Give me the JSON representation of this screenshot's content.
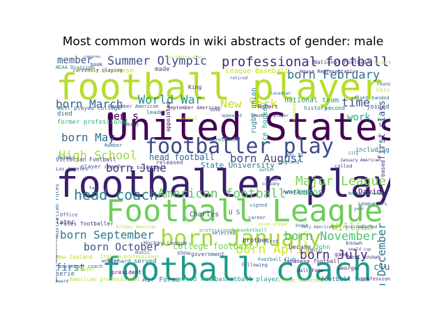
{
  "title": "Most common words in wiki abstracts of gender: male",
  "words": [
    {
      "text": "football player",
      "color": "#b5de2b"
    },
    {
      "text": "United States",
      "color": "#440154"
    },
    {
      "text": "footballer played",
      "color": "#3b1f6a"
    },
    {
      "text": "Football League",
      "color": "#6ccd5a"
    },
    {
      "text": "football coach",
      "color": "#1f9a8a"
    },
    {
      "text": "footballer play",
      "color": "#3e4a89"
    },
    {
      "text": "born January",
      "color": "#a2da37"
    },
    {
      "text": "professional footballer",
      "color": "#482878"
    },
    {
      "text": "Summer Olympic",
      "color": "#3e4c8a"
    },
    {
      "text": "born February",
      "color": "#2c728e"
    },
    {
      "text": "born March",
      "color": "#35608d"
    },
    {
      "text": "World War",
      "color": "#20938c"
    },
    {
      "text": "New York",
      "color": "#c8e020"
    },
    {
      "text": "head coach",
      "color": "#26828e"
    },
    {
      "text": "American football",
      "color": "#5ec962"
    },
    {
      "text": "born September",
      "color": "#2a788e"
    },
    {
      "text": "born October",
      "color": "#3b528b"
    },
    {
      "text": "born April",
      "color": "#d0e11c"
    },
    {
      "text": "born November",
      "color": "#4ac16d"
    },
    {
      "text": "born July",
      "color": "#482677"
    },
    {
      "text": "born December",
      "color": "#2a788e"
    },
    {
      "text": "Major League",
      "color": "#7ad151"
    },
    {
      "text": "born June",
      "color": "#46327e"
    },
    {
      "text": "born May",
      "color": "#31688e"
    },
    {
      "text": "High School",
      "color": "#9fda3a"
    },
    {
      "text": "born August",
      "color": "#3f4788"
    },
    {
      "text": "head football",
      "color": "#33638d"
    },
    {
      "text": "college football",
      "color": "#70cf57"
    },
    {
      "text": "member",
      "color": "#3a538b"
    },
    {
      "text": "men s",
      "color": "#440154"
    },
    {
      "text": "time",
      "color": "#3e4c8a"
    },
    {
      "text": "work",
      "color": "#22a884"
    },
    {
      "text": "season",
      "color": "#4ac16d"
    },
    {
      "text": "William",
      "color": "#9fda3a"
    },
    {
      "text": "first",
      "color": "#2c728e"
    },
    {
      "text": "club",
      "color": "#287c8e"
    },
    {
      "text": "Air Force",
      "color": "#2c728e"
    },
    {
      "text": "served head",
      "color": "#35b779"
    },
    {
      "text": "basketball player",
      "color": "#1f988b"
    },
    {
      "text": "football team",
      "color": "#2c728e"
    },
    {
      "text": "State University",
      "color": "#2a788e"
    },
    {
      "text": "Hockey League",
      "color": "#3b528b"
    },
    {
      "text": "national team",
      "color": "#1e9b8a"
    },
    {
      "text": "first class",
      "color": "#3b528b"
    },
    {
      "text": "rugby union",
      "color": "#2a788e"
    },
    {
      "text": "ice hockey",
      "color": "#20a386"
    },
    {
      "text": "League Baseball",
      "color": "#cae11f"
    },
    {
      "text": "former Japanese",
      "color": "#b8de29"
    },
    {
      "text": "played college",
      "color": "#2c728e"
    },
    {
      "text": "former professional",
      "color": "#2ab07f"
    },
    {
      "text": "Victorian Football",
      "color": "#3e4a89"
    },
    {
      "text": "player coach",
      "color": "#3b528b"
    },
    {
      "text": "rules footballer",
      "color": "#46337e"
    },
    {
      "text": "Australian rules",
      "color": "#33638d"
    },
    {
      "text": "professional basketball",
      "color": "#35b779"
    },
    {
      "text": "New Zealand",
      "color": "#b5de2b"
    },
    {
      "text": "best known",
      "color": "#433e85"
    },
    {
      "text": "American professional",
      "color": "#b5de2b"
    },
    {
      "text": "Japanese football",
      "color": "#472d7b"
    },
    {
      "text": "House Representative",
      "color": "#482878"
    },
    {
      "text": "National Football",
      "color": "#3e4a89"
    },
    {
      "text": "December American",
      "color": "#355f8d"
    },
    {
      "text": "September American",
      "color": "#481f70"
    },
    {
      "text": "worked",
      "color": "#2f6c8e"
    },
    {
      "text": "David",
      "color": "#440154"
    },
    {
      "text": "became",
      "color": "#433e85"
    },
    {
      "text": "John",
      "color": "#31b57b"
    },
    {
      "text": "brother",
      "color": "#482878"
    },
    {
      "text": "Charles",
      "color": "#3e4a89"
    },
    {
      "text": "served",
      "color": "#2c728e"
    },
    {
      "text": "Richard",
      "color": "#2c728e"
    },
    {
      "text": "president",
      "color": "#481a6c"
    },
    {
      "text": "later",
      "color": "#46327e"
    },
    {
      "text": "serie",
      "color": "#34618d"
    },
    {
      "text": "died",
      "color": "#31688e"
    },
    {
      "text": "well",
      "color": "#2a788e"
    },
    {
      "text": "made",
      "color": "#414487"
    },
    {
      "text": "released",
      "color": "#3e4a89"
    },
    {
      "text": "Robert",
      "color": "#482878"
    },
    {
      "text": "history",
      "color": "#2c728e"
    },
    {
      "text": "second",
      "color": "#31688e"
    },
    {
      "text": "joined",
      "color": "#3e4a89"
    },
    {
      "text": "including",
      "color": "#2a788e"
    },
    {
      "text": "England",
      "color": "#2a788e"
    },
    {
      "text": "War II",
      "color": "#2c728e"
    },
    {
      "text": "known",
      "color": "#3b528b"
    },
    {
      "text": "signed",
      "color": "#2a788e"
    },
    {
      "text": "career",
      "color": "#31688e"
    },
    {
      "text": "selected",
      "color": "#3e4a89"
    },
    {
      "text": "game",
      "color": "#46327e"
    },
    {
      "text": "George",
      "color": "#482878"
    },
    {
      "text": "Hall Fame",
      "color": "#482878"
    },
    {
      "text": "London",
      "color": "#b5de2b"
    },
    {
      "text": "Los Angeles",
      "color": "#3e4a89"
    },
    {
      "text": "father",
      "color": "#3b528b"
    },
    {
      "text": "Number",
      "color": "#31688e"
    },
    {
      "text": "family",
      "color": "#2a788e"
    },
    {
      "text": "currently playing",
      "color": "#3b528b"
    },
    {
      "text": "book",
      "color": "#481a6c"
    },
    {
      "text": "NCAA Division",
      "color": "#2c728e"
    },
    {
      "text": "King",
      "color": "#482878"
    },
    {
      "text": "leader",
      "color": "#2a788e"
    },
    {
      "text": "one",
      "color": "#3b528b"
    },
    {
      "text": "appointed",
      "color": "#440154"
    },
    {
      "text": "represented",
      "color": "#2c728e"
    },
    {
      "text": "fight handed",
      "color": "#2c728e"
    },
    {
      "text": "Chinese",
      "color": "#b5de2b"
    },
    {
      "text": "founder",
      "color": "#2c728e"
    },
    {
      "text": "Office",
      "color": "#3b528b"
    },
    {
      "text": "called",
      "color": "#3e4a89"
    },
    {
      "text": "based",
      "color": "#482878"
    },
    {
      "text": "U S",
      "color": "#3b528b"
    },
    {
      "text": "show",
      "color": "#3b528b"
    },
    {
      "text": "government",
      "color": "#3b528b"
    },
    {
      "text": "music",
      "color": "#2a788e"
    },
    {
      "text": "Italian professional",
      "color": "#b5de2b"
    },
    {
      "text": "writer",
      "color": "#3b528b"
    },
    {
      "text": "assistant coach",
      "color": "#2c728e"
    },
    {
      "text": "Award",
      "color": "#3b528b"
    },
    {
      "text": "World Championship",
      "color": "#3e4a89"
    },
    {
      "text": "college basketball",
      "color": "#b5de2b"
    },
    {
      "text": "professional ice",
      "color": "#482878"
    },
    {
      "text": "s basketball",
      "color": "#3b528b"
    },
    {
      "text": "following",
      "color": "#3b528b"
    },
    {
      "text": "Football Club",
      "color": "#2c728e"
    },
    {
      "text": "union player",
      "color": "#b5de2b"
    },
    {
      "text": "s first",
      "color": "#3b528b"
    },
    {
      "text": "July American",
      "color": "#2c728e"
    },
    {
      "text": "January American",
      "color": "#482878"
    },
    {
      "text": "North American",
      "color": "#2c728e"
    },
    {
      "text": "League VFL",
      "color": "#3b528b"
    },
    {
      "text": "October American",
      "color": "#b5de2b"
    },
    {
      "text": "New Jersey",
      "color": "#2c728e"
    },
    {
      "text": "two",
      "color": "#3b528b"
    },
    {
      "text": "competed",
      "color": "#3b528b"
    },
    {
      "text": "currently play",
      "color": "#b5de2b"
    },
    {
      "text": "world cup",
      "color": "#3e4a89"
    },
    {
      "text": "baseball player",
      "color": "#3b528b"
    },
    {
      "text": "author",
      "color": "#2c728e"
    },
    {
      "text": "named",
      "color": "#3b528b"
    },
    {
      "text": "Peter",
      "color": "#3b528b"
    },
    {
      "text": "received",
      "color": "#3e4a89"
    },
    {
      "text": "year",
      "color": "#2c728e"
    },
    {
      "text": "retired",
      "color": "#3b528b"
    },
    {
      "text": "Daniel",
      "color": "#2c728e"
    },
    {
      "text": "former player",
      "color": "#b5de2b"
    },
    {
      "text": "appeared",
      "color": "#3b528b"
    },
    {
      "text": "several",
      "color": "#b5de2b"
    },
    {
      "text": "Canadian",
      "color": "#2c728e"
    },
    {
      "text": "Alexander",
      "color": "#b5de2b"
    },
    {
      "text": "City",
      "color": "#3b528b"
    },
    {
      "text": "known",
      "color": "#3b528b"
    },
    {
      "text": "company",
      "color": "#3b528b"
    },
    {
      "text": "Australian",
      "color": "#b5de2b"
    },
    {
      "text": "coached",
      "color": "#3b528b"
    }
  ]
}
